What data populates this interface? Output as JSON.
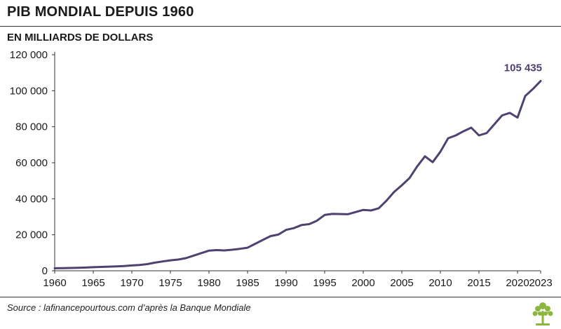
{
  "header": {
    "title": "PIB MONDIAL DEPUIS 1960",
    "subtitle": "EN MILLIARDS DE DOLLARS"
  },
  "footer": {
    "source": "Source : lafinancepourtous.com d’après la Banque Mondiale"
  },
  "colors": {
    "line": "#4f4170",
    "axis": "#333333",
    "grid": "#e0e0e0"
  },
  "icons": {
    "logo": "tree-logo-icon"
  },
  "chart_data": {
    "type": "line",
    "title": "PIB MONDIAL DEPUIS 1960",
    "subtitle": "EN MILLIARDS DE DOLLARS",
    "xlabel": "",
    "ylabel": "",
    "xlim": [
      1960,
      2023
    ],
    "ylim": [
      0,
      120000
    ],
    "grid": "horizontal",
    "x_ticks": [
      1960,
      1965,
      1970,
      1975,
      1980,
      1985,
      1990,
      1995,
      2000,
      2005,
      2010,
      2015,
      2020,
      2023
    ],
    "x_tick_labels": [
      "1960",
      "1965",
      "1970",
      "1975",
      "1980",
      "1985",
      "1990",
      "1995",
      "2000",
      "2005",
      "2010",
      "2015",
      "2020",
      "2023"
    ],
    "y_ticks": [
      0,
      20000,
      40000,
      60000,
      80000,
      100000,
      120000
    ],
    "y_tick_labels": [
      "0",
      "20 000",
      "40 000",
      "60 000",
      "80 000",
      "100 000",
      "120 000"
    ],
    "annotations": [
      {
        "x": 2023,
        "y": 105435,
        "text": "105 435"
      }
    ],
    "series": [
      {
        "x": [
          1960,
          1961,
          1962,
          1963,
          1964,
          1965,
          1966,
          1967,
          1968,
          1969,
          1970,
          1971,
          1972,
          1973,
          1974,
          1975,
          1976,
          1977,
          1978,
          1979,
          1980,
          1981,
          1982,
          1983,
          1984,
          1985,
          1986,
          1987,
          1988,
          1989,
          1990,
          1991,
          1992,
          1993,
          1994,
          1995,
          1996,
          1997,
          1998,
          1999,
          2000,
          2001,
          2002,
          2003,
          2004,
          2005,
          2006,
          2007,
          2008,
          2009,
          2010,
          2011,
          2012,
          2013,
          2014,
          2015,
          2016,
          2017,
          2018,
          2019,
          2020,
          2021,
          2022,
          2023
        ],
        "values": [
          1400,
          1450,
          1550,
          1650,
          1800,
          2000,
          2150,
          2300,
          2450,
          2650,
          2950,
          3200,
          3700,
          4500,
          5200,
          5800,
          6250,
          7000,
          8400,
          9800,
          11200,
          11500,
          11300,
          11700,
          12200,
          12800,
          15000,
          17200,
          19300,
          20100,
          22700,
          23700,
          25400,
          25900,
          27800,
          31000,
          31600,
          31500,
          31400,
          32600,
          33800,
          33500,
          34700,
          38900,
          43800,
          47500,
          51500,
          58000,
          63600,
          60300,
          66100,
          73600,
          75200,
          77500,
          79500,
          75200,
          76500,
          81400,
          86300,
          87700,
          85100,
          97100,
          101000,
          105435
        ]
      }
    ]
  }
}
